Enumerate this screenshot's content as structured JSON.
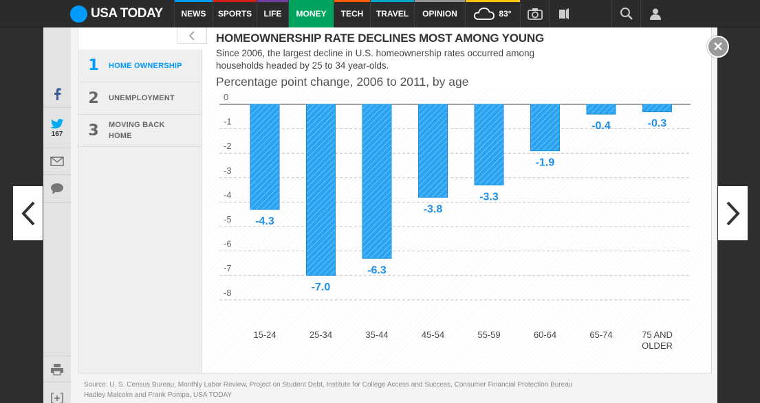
{
  "brand": {
    "name": "USA TODAY",
    "color": "#009bff"
  },
  "nav": [
    {
      "label": "NEWS",
      "color": "#009bff",
      "width": 56
    },
    {
      "label": "SPORTS",
      "color": "#d51f18",
      "width": 64
    },
    {
      "label": "LIFE",
      "color": "#703da1",
      "width": 46
    },
    {
      "label": "MONEY",
      "color": "#00a35d",
      "width": 66,
      "active": true
    },
    {
      "label": "TECH",
      "color": "#ff5a00",
      "width": 53
    },
    {
      "label": "TRAVEL",
      "color": "#00a4c7",
      "width": 64
    },
    {
      "label": "OPINION",
      "color": "#959595",
      "width": 74
    }
  ],
  "weather": {
    "temp": "83°",
    "icon": "cloud-icon",
    "accent": "#ffc20e"
  },
  "nav_icons": [
    "camera-icon",
    "video-icon"
  ],
  "nav_right_icons": [
    "search-icon",
    "user-icon"
  ],
  "share": {
    "twitter_count": "167"
  },
  "story_nav": [
    {
      "num": "1",
      "label": "HOME OWNERSHIP",
      "active": true
    },
    {
      "num": "2",
      "label": "UNEMPLOYMENT",
      "active": false
    },
    {
      "num": "3",
      "label": "MOVING BACK HOME",
      "active": false
    }
  ],
  "chart": {
    "title": "HOMEOWNERSHIP RATE DECLINES MOST AMONG YOUNG",
    "subtitle": "Since 2006, the largest decline in U.S. homeownership rates occurred among households headed by 25 to 34 year-olds.",
    "measure": "Percentage point change, 2006 to 2011, by age"
  },
  "chart_data": {
    "type": "bar",
    "title": "HOMEOWNERSHIP RATE DECLINES MOST AMONG YOUNG",
    "subtitle": "Percentage point change, 2006 to 2011, by age",
    "categories": [
      "15-24",
      "25-34",
      "35-44",
      "45-54",
      "55-59",
      "60-64",
      "65-74",
      "75 AND OLDER"
    ],
    "values": [
      -4.3,
      -7.0,
      -6.3,
      -3.8,
      -3.3,
      -1.9,
      -0.4,
      -0.3
    ],
    "value_labels": [
      "-4.3",
      "-7.0",
      "-6.3",
      "-3.8",
      "-3.3",
      "-1.9",
      "-0.4",
      "-0.3"
    ],
    "yticks": [
      "0",
      "-1",
      "-2",
      "-3",
      "-4",
      "-5",
      "-6",
      "-7",
      "-8"
    ],
    "ylim": [
      -8,
      0
    ],
    "grid": true,
    "bar_color": "#29a3f2"
  },
  "source": {
    "line1": "Source: U. S. Census Bureau, Monthly Labor Review, Project on Student Debt, Institute for College Access and Success, Consumer Financial Protection Bureau",
    "line2": "Hadley Malcolm and Frank Pompa, USA TODAY"
  }
}
